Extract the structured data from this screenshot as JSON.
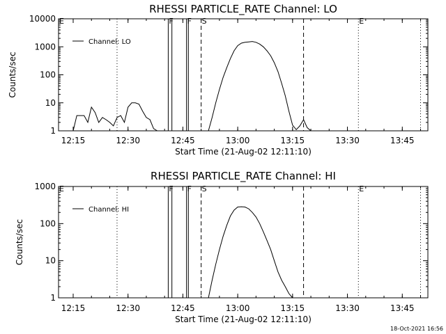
{
  "chart_data": [
    {
      "type": "line",
      "title": "RHESSI PARTICLE_RATE Channel: LO",
      "xlabel": "Start Time (21-Aug-02 12:11:10)",
      "ylabel": "Counts/sec",
      "yscale": "log",
      "ylim": [
        1,
        10000
      ],
      "xlim": [
        "12:11",
        "13:52"
      ],
      "x_ticks": [
        "12:15",
        "12:30",
        "12:45",
        "13:00",
        "13:15",
        "13:30",
        "13:45"
      ],
      "y_ticks": [
        "1",
        "10",
        "100",
        "1000",
        "10000"
      ],
      "legend": "top-left",
      "series": [
        {
          "name": "Channel: LO",
          "x": [
            "12:15",
            "12:16",
            "12:17",
            "12:18",
            "12:19",
            "12:20",
            "12:21",
            "12:22",
            "12:23",
            "12:24",
            "12:25",
            "12:26",
            "12:27",
            "12:28",
            "12:29",
            "12:30",
            "12:31",
            "12:32",
            "12:33",
            "12:34",
            "12:35",
            "12:36",
            "12:37",
            "12:38",
            "12:52",
            "12:53",
            "12:54",
            "12:55",
            "12:56",
            "12:57",
            "12:58",
            "12:59",
            "13:00",
            "13:01",
            "13:02",
            "13:03",
            "13:04",
            "13:05",
            "13:06",
            "13:07",
            "13:08",
            "13:09",
            "13:10",
            "13:11",
            "13:12",
            "13:13",
            "13:14",
            "13:15",
            "13:16",
            "13:17",
            "13:18",
            "13:19",
            "13:20"
          ],
          "y": [
            1,
            3.5,
            3.5,
            3.5,
            2,
            7,
            4.5,
            2,
            3,
            2.5,
            2,
            1.5,
            3,
            3.5,
            2,
            7,
            10,
            10,
            9,
            5,
            3,
            2.5,
            1.2,
            1,
            1,
            3,
            10,
            30,
            80,
            180,
            380,
            720,
            1100,
            1350,
            1450,
            1500,
            1550,
            1450,
            1250,
            1000,
            720,
            480,
            270,
            130,
            50,
            18,
            5,
            1.6,
            1.1,
            1.5,
            2.5,
            1.3,
            1
          ]
        }
      ],
      "flags": [
        {
          "label": "E",
          "time": "12:11",
          "style": "dotted"
        },
        {
          "label": "",
          "time": "12:27",
          "style": "dotted"
        },
        {
          "label": "F",
          "time": "12:41",
          "style": "solid"
        },
        {
          "label": "",
          "time": "12:42",
          "style": "solid"
        },
        {
          "label": "F",
          "time": "12:46",
          "style": "solid"
        },
        {
          "label": "",
          "time": "12:46.5",
          "style": "solid"
        },
        {
          "label": "S",
          "time": "12:50",
          "style": "dashed"
        },
        {
          "label": "",
          "time": "13:18",
          "style": "dashed"
        },
        {
          "label": "E",
          "time": "13:33",
          "style": "dotted"
        },
        {
          "label": "",
          "time": "13:50",
          "style": "dotted"
        }
      ]
    },
    {
      "type": "line",
      "title": "RHESSI PARTICLE_RATE Channel: HI",
      "xlabel": "Start Time (21-Aug-02 12:11:10)",
      "ylabel": "Counts/sec",
      "yscale": "log",
      "ylim": [
        1,
        1000
      ],
      "xlim": [
        "12:11",
        "13:52"
      ],
      "x_ticks": [
        "12:15",
        "12:30",
        "12:45",
        "13:00",
        "13:15",
        "13:30",
        "13:45"
      ],
      "y_ticks": [
        "1",
        "10",
        "100",
        "1000"
      ],
      "legend": "top-left",
      "series": [
        {
          "name": "Channel: HI",
          "x": [
            "12:52",
            "12:53",
            "12:54",
            "12:55",
            "12:56",
            "12:57",
            "12:58",
            "12:59",
            "13:00",
            "13:01",
            "13:02",
            "13:03",
            "13:04",
            "13:05",
            "13:06",
            "13:07",
            "13:08",
            "13:09",
            "13:10",
            "13:11",
            "13:12",
            "13:13",
            "13:14",
            "13:15"
          ],
          "y": [
            1,
            3,
            8,
            20,
            45,
            90,
            160,
            230,
            280,
            285,
            280,
            250,
            200,
            150,
            100,
            60,
            35,
            20,
            10,
            5,
            3,
            2,
            1.3,
            1
          ]
        }
      ],
      "flags": [
        {
          "label": "E",
          "time": "12:11",
          "style": "dotted"
        },
        {
          "label": "",
          "time": "12:27",
          "style": "dotted"
        },
        {
          "label": "F",
          "time": "12:41",
          "style": "solid"
        },
        {
          "label": "",
          "time": "12:42",
          "style": "solid"
        },
        {
          "label": "F",
          "time": "12:46",
          "style": "solid"
        },
        {
          "label": "",
          "time": "12:46.5",
          "style": "solid"
        },
        {
          "label": "S",
          "time": "12:50",
          "style": "dashed"
        },
        {
          "label": "",
          "time": "13:18",
          "style": "dashed"
        },
        {
          "label": "E",
          "time": "13:33",
          "style": "dotted"
        },
        {
          "label": "",
          "time": "13:50",
          "style": "dotted"
        }
      ]
    }
  ],
  "footer": {
    "timestamp": "18-Oct-2021 16:56"
  }
}
